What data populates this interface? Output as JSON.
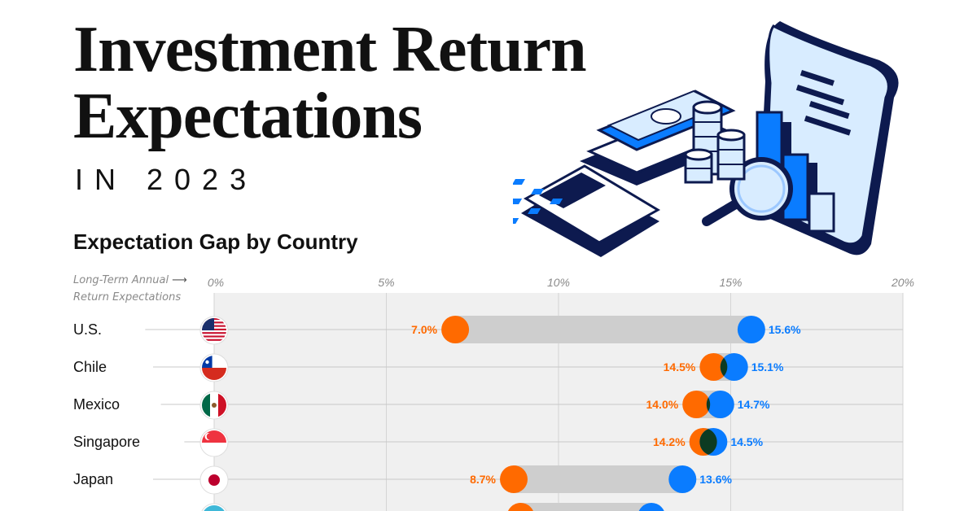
{
  "header": {
    "title_line1": "Investment Return",
    "title_line2": "Expectations",
    "subtitle": "IN 2023"
  },
  "chart_title": "Expectation Gap by Country",
  "axis_note": {
    "line1": "Long-Term Annual",
    "line2": "Return Expectations"
  },
  "colors": {
    "orange": "#ff6a00",
    "blue": "#0a7cff",
    "overlap": "#0d3b22",
    "band": "#f0f0f0",
    "gap": "#cecece",
    "navy": "#0d1a4f"
  },
  "illustration": {
    "name": "finance-illustration",
    "elements": [
      "receipt-icon",
      "bar-chart-icon",
      "magnifier-icon",
      "calculator-icon",
      "cash-icon",
      "coin-stack-icon"
    ]
  },
  "chart_data": {
    "type": "dumbbell",
    "x_ticks": [
      "0%",
      "5%",
      "10%",
      "15%",
      "20%"
    ],
    "xlim": [
      0,
      20
    ],
    "grid": true,
    "countries": [
      {
        "name": "U.S.",
        "flag": "us-flag-icon",
        "low": 7.0,
        "high": 15.6,
        "low_label": "7.0%",
        "high_label": "15.6%"
      },
      {
        "name": "Chile",
        "flag": "chile-flag-icon",
        "low": 14.5,
        "high": 15.1,
        "low_label": "14.5%",
        "high_label": "15.1%"
      },
      {
        "name": "Mexico",
        "flag": "mexico-flag-icon",
        "low": 14.0,
        "high": 14.7,
        "low_label": "14.0%",
        "high_label": "14.7%"
      },
      {
        "name": "Singapore",
        "flag": "singapore-flag-icon",
        "low": 14.2,
        "high": 14.5,
        "low_label": "14.2%",
        "high_label": "14.5%"
      },
      {
        "name": "Japan",
        "flag": "japan-flag-icon",
        "low": 8.7,
        "high": 13.6,
        "low_label": "8.7%",
        "high_label": "13.6%"
      },
      {
        "name": "",
        "flag": "flag-icon",
        "low": 8.9,
        "high": 12.7,
        "low_label": "",
        "high_label": ""
      }
    ]
  }
}
